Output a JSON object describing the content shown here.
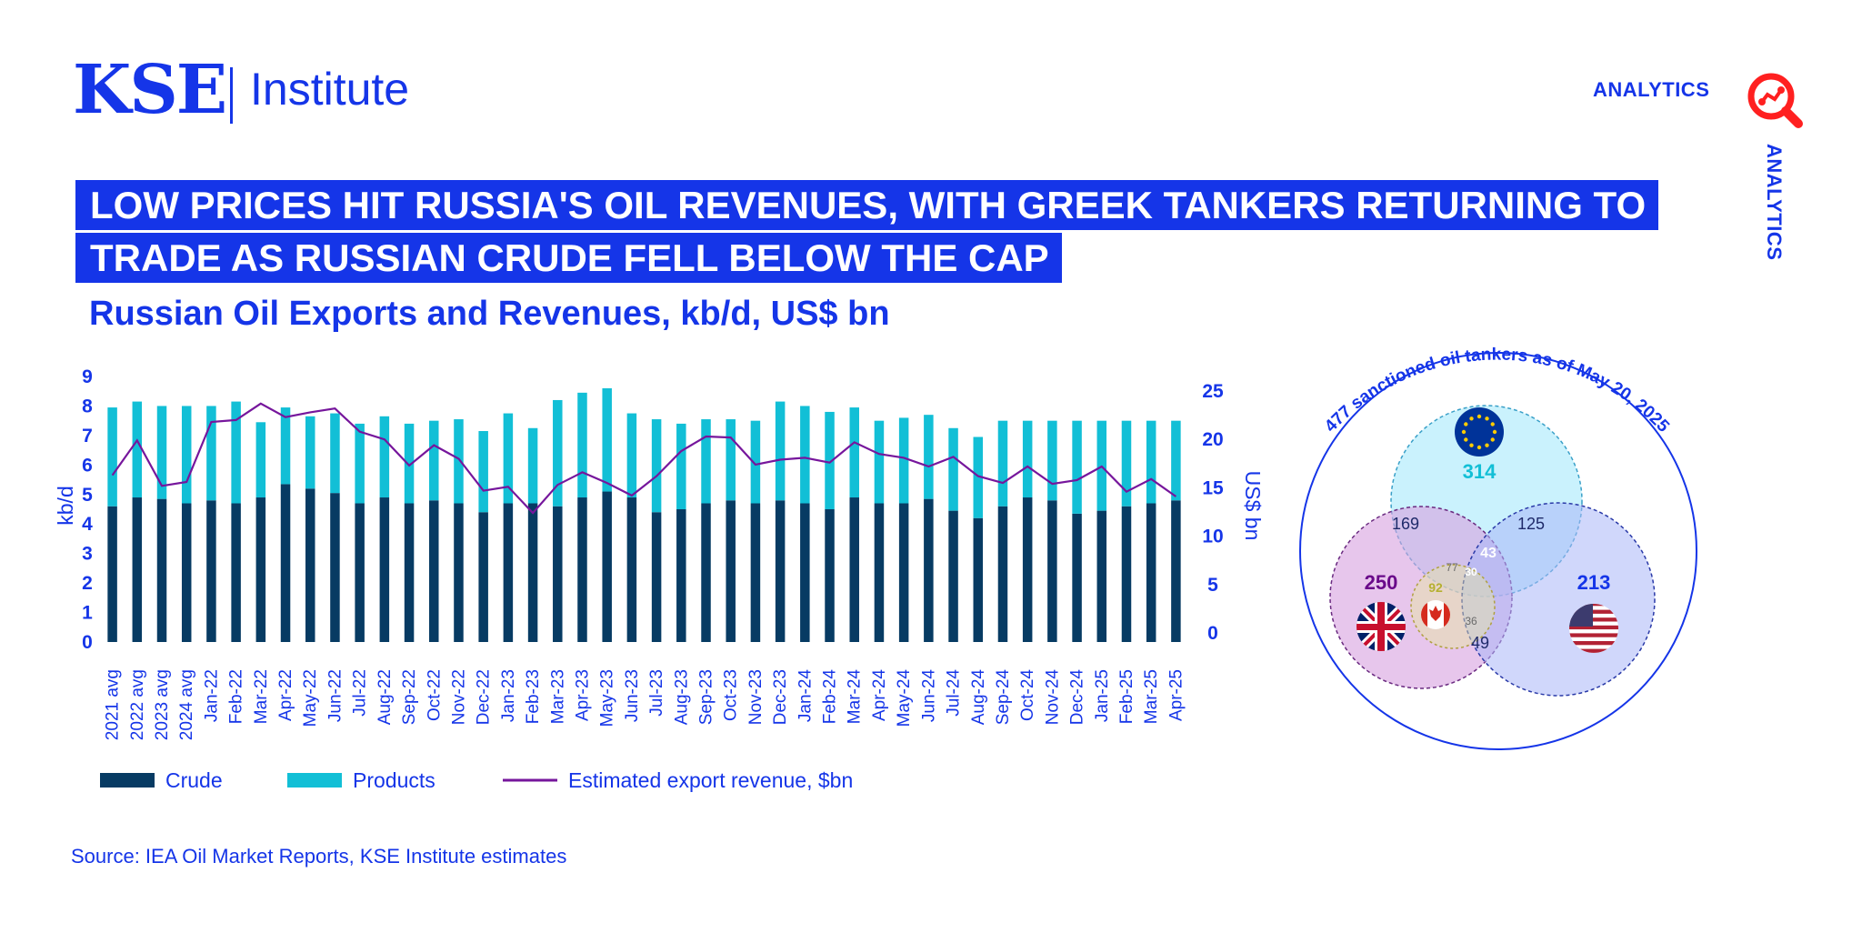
{
  "header": {
    "logo_kse": "KSE",
    "logo_institute": "Institute",
    "analytics_label": "ANALYTICS",
    "analytics_vertical": "ANALYTICS"
  },
  "headline": {
    "line1": "LOW PRICES HIT RUSSIA'S OIL REVENUES, WITH GREEK TANKERS RETURNING TO",
    "line2": "TRADE AS RUSSIAN CRUDE FELL BELOW THE CAP"
  },
  "colors": {
    "brand": "#1535e8",
    "crude": "#073b63",
    "products": "#12bfd6",
    "revenue": "#76169c",
    "eu": "#9fe8fb",
    "uk": "#d7a0e0",
    "us": "#b8c3f9"
  },
  "chart_data": [
    {
      "type": "bar",
      "title": "Russian Oil Exports and Revenues, kb/d, US$ bn",
      "ylabel": "kb/d",
      "y2label": "US$ bn",
      "ylim": [
        0,
        9
      ],
      "y2lim": [
        0,
        25
      ],
      "yticks": [
        "0",
        "1",
        "2",
        "3",
        "4",
        "5",
        "6",
        "7",
        "8",
        "9"
      ],
      "y2ticks": [
        "0",
        "5",
        "10",
        "15",
        "20",
        "25"
      ],
      "stacked": true,
      "grid": false,
      "legend_position": "bottom",
      "categories": [
        "2021 avg",
        "2022 avg",
        "2023 avg",
        "2024 avg",
        "Jan-22",
        "Feb-22",
        "Mar-22",
        "Apr-22",
        "May-22",
        "Jun-22",
        "Jul-22",
        "Aug-22",
        "Sep-22",
        "Oct-22",
        "Nov-22",
        "Dec-22",
        "Jan-23",
        "Feb-23",
        "Mar-23",
        "Apr-23",
        "May-23",
        "Jun-23",
        "Jul-23",
        "Aug-23",
        "Sep-23",
        "Oct-23",
        "Nov-23",
        "Dec-23",
        "Jan-24",
        "Feb-24",
        "Mar-24",
        "Apr-24",
        "May-24",
        "Jun-24",
        "Jul-24",
        "Aug-24",
        "Sep-24",
        "Oct-24",
        "Nov-24",
        "Dec-24",
        "Jan-25",
        "Feb-25",
        "Mar-25",
        "Apr-25"
      ],
      "series": [
        {
          "name": "Crude",
          "axis": "left",
          "kind": "bar",
          "values": [
            4.6,
            4.9,
            4.85,
            4.7,
            4.8,
            4.7,
            4.9,
            5.35,
            5.2,
            5.05,
            4.7,
            4.9,
            4.7,
            4.8,
            4.7,
            4.4,
            4.7,
            4.7,
            4.6,
            4.9,
            5.1,
            4.9,
            4.4,
            4.5,
            4.7,
            4.8,
            4.7,
            4.8,
            4.7,
            4.5,
            4.9,
            4.7,
            4.7,
            4.85,
            4.45,
            4.2,
            4.6,
            4.9,
            4.8,
            4.35,
            4.45,
            4.6,
            4.7,
            4.8
          ]
        },
        {
          "name": "Products",
          "axis": "left",
          "kind": "bar",
          "values": [
            3.35,
            3.25,
            3.15,
            3.3,
            3.2,
            3.45,
            2.55,
            2.6,
            2.45,
            2.7,
            2.7,
            2.75,
            2.7,
            2.7,
            2.85,
            2.75,
            3.05,
            2.55,
            3.6,
            3.55,
            3.5,
            2.85,
            3.15,
            2.9,
            2.85,
            2.75,
            2.8,
            3.35,
            3.3,
            3.3,
            3.05,
            2.8,
            2.9,
            2.85,
            2.8,
            2.75,
            2.9,
            2.6,
            2.7,
            3.15,
            3.05,
            2.9,
            2.8,
            2.7
          ]
        },
        {
          "name": "Estimated export revenue, $bn",
          "axis": "right",
          "kind": "line",
          "values": [
            16.3,
            19.9,
            15.2,
            15.6,
            21.8,
            22.0,
            23.7,
            22.3,
            22.8,
            23.2,
            20.8,
            20.0,
            17.3,
            19.4,
            18.0,
            14.7,
            15.1,
            12.4,
            15.3,
            16.6,
            15.5,
            14.2,
            16.2,
            18.8,
            20.3,
            20.2,
            17.4,
            17.9,
            18.1,
            17.6,
            19.7,
            18.5,
            18.1,
            17.2,
            18.2,
            16.2,
            15.5,
            17.2,
            15.4,
            15.8,
            17.2,
            14.6,
            15.9,
            14.1
          ]
        }
      ]
    },
    {
      "type": "venn",
      "title": "477 sanctioned oil tankers as of May 20, 2025",
      "sets": [
        {
          "name": "EU",
          "value": 314
        },
        {
          "name": "UK",
          "value": 250
        },
        {
          "name": "US",
          "value": 213
        },
        {
          "name": "Canada",
          "value": 92
        }
      ],
      "intersections": [
        {
          "label": "169"
        },
        {
          "label": "125"
        },
        {
          "label": "43"
        },
        {
          "label": "77"
        },
        {
          "label": "30"
        },
        {
          "label": "36"
        },
        {
          "label": "49"
        }
      ]
    }
  ],
  "source": "Source: IEA Oil Market Reports, KSE Institute estimates"
}
